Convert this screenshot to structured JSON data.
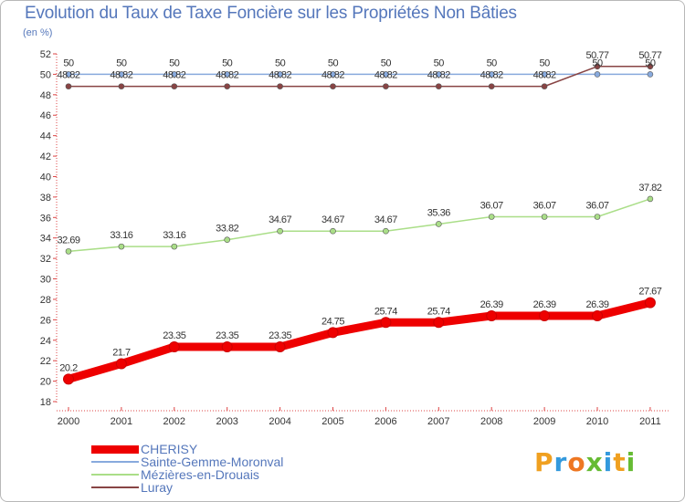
{
  "title": "Evolution du Taux de Taxe Foncière sur les Propriétés Non Bâties",
  "unit": "(en %)",
  "logo": {
    "text": "Proxiti",
    "letters": [
      "P",
      "r",
      "o",
      "x",
      "i",
      "t",
      "i"
    ],
    "colors": [
      "#f0a020",
      "#3399dd",
      "#ee7722",
      "#66bb33",
      "#3399dd",
      "#f0a020",
      "#66bb33"
    ]
  },
  "chart_data": {
    "type": "line",
    "title": "Evolution du Taux de Taxe Foncière sur les Propriétés Non Bâties",
    "ylabel": "(en %)",
    "xlabel": "",
    "ylim": [
      18,
      52
    ],
    "yticks": [
      "18",
      "20",
      "22",
      "24",
      "26",
      "28",
      "30",
      "32",
      "34",
      "36",
      "38",
      "40",
      "42",
      "44",
      "46",
      "48",
      "50",
      "52"
    ],
    "categories": [
      "2000",
      "2001",
      "2002",
      "2003",
      "2004",
      "2005",
      "2006",
      "2007",
      "2008",
      "2009",
      "2010",
      "2011"
    ],
    "series": [
      {
        "name": "CHERISY",
        "color": "#ee0000",
        "width": 9,
        "values": [
          20.2,
          21.7,
          23.35,
          23.35,
          23.35,
          24.75,
          25.74,
          25.74,
          26.39,
          26.39,
          26.39,
          27.67
        ],
        "labels": [
          "20.2",
          "21.7",
          "23.35",
          "23.35",
          "23.35",
          "24.75",
          "25.74",
          "25.74",
          "26.39",
          "26.39",
          "26.39",
          "27.67"
        ]
      },
      {
        "name": "Sainte-Gemme-Moronval",
        "color": "#88aadd",
        "width": 1.5,
        "values": [
          50,
          50,
          50,
          50,
          50,
          50,
          50,
          50,
          50,
          50,
          50,
          50
        ],
        "labels": [
          "50",
          "50",
          "50",
          "50",
          "50",
          "50",
          "50",
          "50",
          "50",
          "50",
          "50",
          "50"
        ]
      },
      {
        "name": "Mézières-en-Drouais",
        "color": "#aade88",
        "width": 1.5,
        "values": [
          32.69,
          33.16,
          33.16,
          33.82,
          34.67,
          34.67,
          34.67,
          35.36,
          36.07,
          36.07,
          36.07,
          37.82
        ],
        "labels": [
          "32.69",
          "33.16",
          "33.16",
          "33.82",
          "34.67",
          "34.67",
          "34.67",
          "35.36",
          "36.07",
          "36.07",
          "36.07",
          "37.82"
        ]
      },
      {
        "name": "Luray",
        "color": "#884444",
        "width": 1.5,
        "values": [
          48.82,
          48.82,
          48.82,
          48.82,
          48.82,
          48.82,
          48.82,
          48.82,
          48.82,
          48.82,
          50.77,
          50.77
        ],
        "labels": [
          "48.82",
          "48.82",
          "48.82",
          "48.82",
          "48.82",
          "48.82",
          "48.82",
          "48.82",
          "48.82",
          "48.82",
          "50.77",
          "50.77"
        ]
      }
    ],
    "legend_position": "bottom-left",
    "grid": false
  }
}
